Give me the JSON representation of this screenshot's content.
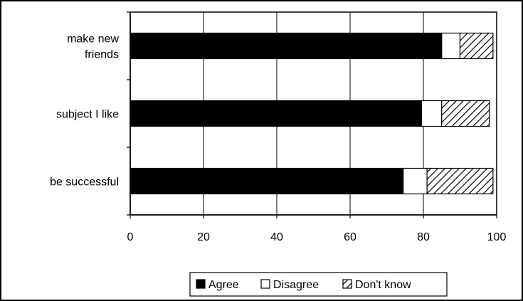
{
  "chart_data": {
    "type": "bar",
    "orientation": "horizontal",
    "stacked": true,
    "categories": [
      [
        "make new",
        "friends"
      ],
      [
        "subject I like"
      ],
      [
        "be successful"
      ]
    ],
    "series": [
      {
        "name": "Agree",
        "values": [
          85,
          79.5,
          74.5
        ],
        "color": "#000000",
        "pattern": "solid"
      },
      {
        "name": "Disagree",
        "values": [
          5,
          5.5,
          6.5
        ],
        "color": "#ffffff",
        "pattern": "none"
      },
      {
        "name": "Don't know",
        "values": [
          9,
          13,
          18
        ],
        "color": "#ffffff",
        "pattern": "diagonal-hatch"
      }
    ],
    "xlim": [
      0,
      100
    ],
    "xticks": [
      0,
      20,
      40,
      60,
      80,
      100
    ],
    "grid": "vertical",
    "legend": "bottom-center",
    "title": "",
    "xlabel": "",
    "ylabel": ""
  }
}
